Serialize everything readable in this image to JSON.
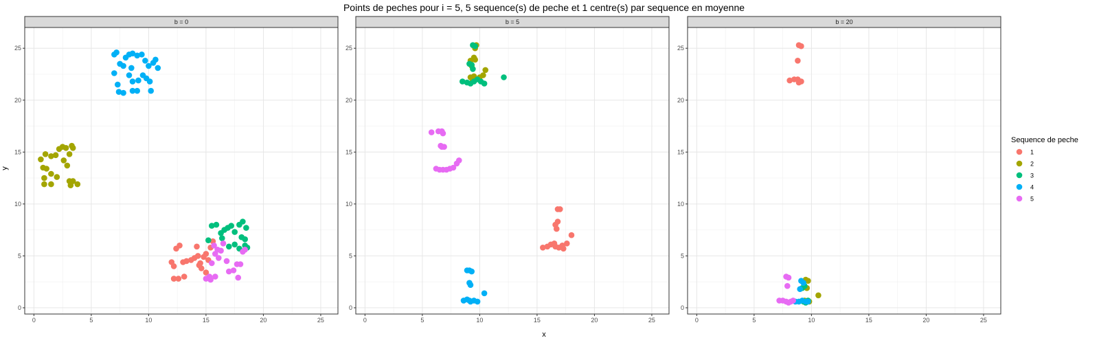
{
  "chart_data": {
    "type": "scatter",
    "title": "Points de peches pour i = 5, 5 sequence(s) de peche et 1 centre(s) par sequence en moyenne",
    "xlabel": "x",
    "ylabel": "y",
    "xlim": [
      -0.8,
      26.5
    ],
    "ylim": [
      -0.6,
      27
    ],
    "x_ticks": [
      0,
      5,
      10,
      15,
      20,
      25
    ],
    "y_ticks": [
      0,
      5,
      10,
      15,
      20,
      25
    ],
    "grid": true,
    "legend": {
      "title": "Sequence de peche",
      "placement": "right",
      "entries": [
        {
          "label": "1",
          "color": "#F8766D"
        },
        {
          "label": "2",
          "color": "#A3A500"
        },
        {
          "label": "3",
          "color": "#00BF7D"
        },
        {
          "label": "4",
          "color": "#00B0F6"
        },
        {
          "label": "5",
          "color": "#E76BF3"
        }
      ]
    },
    "panels": [
      {
        "strip": "b = 0",
        "series": [
          {
            "name": "1",
            "points": [
              [
                12.0,
                4.4
              ],
              [
                12.2,
                4.0
              ],
              [
                12.4,
                5.7
              ],
              [
                12.7,
                6.0
              ],
              [
                13.0,
                4.4
              ],
              [
                13.3,
                4.5
              ],
              [
                13.7,
                4.6
              ],
              [
                14.0,
                4.8
              ],
              [
                14.3,
                5.0
              ],
              [
                14.5,
                4.3
              ],
              [
                14.6,
                3.8
              ],
              [
                14.8,
                4.9
              ],
              [
                15.0,
                5.2
              ],
              [
                15.2,
                4.6
              ],
              [
                15.4,
                5.8
              ],
              [
                15.6,
                6.4
              ],
              [
                15.0,
                3.4
              ],
              [
                14.2,
                5.9
              ],
              [
                12.2,
                2.8
              ],
              [
                12.6,
                2.8
              ],
              [
                13.1,
                3.0
              ],
              [
                14.4,
                4.1
              ]
            ]
          },
          {
            "name": "2",
            "points": [
              [
                0.6,
                14.3
              ],
              [
                0.8,
                13.5
              ],
              [
                1.1,
                13.4
              ],
              [
                1.0,
                14.8
              ],
              [
                1.5,
                14.6
              ],
              [
                1.9,
                14.7
              ],
              [
                2.2,
                15.3
              ],
              [
                2.5,
                15.5
              ],
              [
                2.8,
                15.4
              ],
              [
                2.6,
                14.2
              ],
              [
                2.9,
                13.7
              ],
              [
                3.1,
                14.8
              ],
              [
                3.3,
                15.6
              ],
              [
                3.4,
                15.4
              ],
              [
                0.9,
                12.5
              ],
              [
                0.9,
                11.9
              ],
              [
                1.5,
                11.9
              ],
              [
                1.5,
                12.9
              ],
              [
                2.0,
                12.6
              ],
              [
                3.1,
                12.2
              ],
              [
                3.4,
                12.2
              ],
              [
                3.2,
                11.8
              ],
              [
                3.8,
                11.9
              ]
            ]
          },
          {
            "name": "3",
            "points": [
              [
                15.2,
                6.5
              ],
              [
                15.5,
                7.9
              ],
              [
                15.9,
                8.0
              ],
              [
                16.3,
                7.2
              ],
              [
                16.6,
                7.5
              ],
              [
                16.9,
                7.7
              ],
              [
                17.2,
                7.9
              ],
              [
                17.5,
                7.3
              ],
              [
                17.9,
                8.0
              ],
              [
                18.2,
                8.3
              ],
              [
                18.5,
                7.7
              ],
              [
                18.1,
                6.8
              ],
              [
                18.4,
                6.0
              ],
              [
                18.6,
                5.8
              ],
              [
                17.5,
                6.1
              ],
              [
                17.0,
                5.9
              ],
              [
                16.4,
                6.7
              ],
              [
                18.4,
                6.6
              ],
              [
                17.9,
                5.7
              ]
            ]
          },
          {
            "name": "4",
            "points": [
              [
                7.0,
                24.4
              ],
              [
                7.2,
                24.6
              ],
              [
                7.5,
                23.5
              ],
              [
                7.8,
                23.3
              ],
              [
                8.0,
                24.1
              ],
              [
                8.3,
                24.4
              ],
              [
                8.6,
                24.5
              ],
              [
                9.0,
                24.3
              ],
              [
                9.4,
                24.4
              ],
              [
                9.7,
                23.8
              ],
              [
                10.0,
                23.3
              ],
              [
                10.4,
                23.6
              ],
              [
                10.6,
                23.9
              ],
              [
                10.8,
                23.1
              ],
              [
                7.0,
                22.6
              ],
              [
                7.3,
                21.5
              ],
              [
                7.4,
                20.8
              ],
              [
                7.8,
                20.7
              ],
              [
                8.3,
                22.4
              ],
              [
                8.5,
                23.1
              ],
              [
                8.6,
                21.8
              ],
              [
                9.1,
                21.9
              ],
              [
                9.5,
                22.4
              ],
              [
                9.8,
                22.1
              ],
              [
                10.1,
                21.8
              ],
              [
                10.2,
                20.9
              ],
              [
                9.0,
                20.9
              ],
              [
                8.6,
                20.9
              ]
            ]
          },
          {
            "name": "5",
            "points": [
              [
                15.0,
                2.8
              ],
              [
                15.4,
                2.7
              ],
              [
                15.3,
                3.0
              ],
              [
                15.5,
                4.3
              ],
              [
                15.8,
                5.2
              ],
              [
                16.0,
                5.6
              ],
              [
                16.3,
                5.5
              ],
              [
                16.5,
                6.2
              ],
              [
                16.8,
                4.5
              ],
              [
                17.0,
                3.5
              ],
              [
                17.4,
                3.6
              ],
              [
                17.7,
                4.2
              ],
              [
                18.0,
                4.2
              ],
              [
                18.2,
                5.4
              ],
              [
                18.4,
                5.6
              ],
              [
                17.8,
                2.9
              ],
              [
                16.1,
                4.8
              ],
              [
                15.8,
                3.0
              ],
              [
                15.7,
                6.0
              ]
            ]
          }
        ]
      },
      {
        "strip": "b = 5",
        "series": [
          {
            "name": "1",
            "points": [
              [
                15.5,
                5.8
              ],
              [
                15.9,
                5.9
              ],
              [
                16.2,
                6.1
              ],
              [
                16.5,
                6.2
              ],
              [
                16.6,
                5.9
              ],
              [
                16.9,
                5.8
              ],
              [
                17.2,
                6.0
              ],
              [
                16.7,
                7.6
              ],
              [
                16.8,
                8.3
              ],
              [
                16.6,
                8.0
              ],
              [
                16.8,
                9.5
              ],
              [
                17.0,
                9.5
              ],
              [
                17.6,
                6.2
              ],
              [
                18.0,
                7.0
              ],
              [
                17.3,
                5.7
              ]
            ]
          },
          {
            "name": "2",
            "points": [
              [
                9.2,
                22.2
              ],
              [
                9.5,
                22.3
              ],
              [
                9.7,
                22.0
              ],
              [
                10.0,
                22.2
              ],
              [
                10.3,
                22.4
              ],
              [
                10.5,
                22.9
              ],
              [
                9.5,
                24.1
              ],
              [
                9.6,
                23.9
              ],
              [
                9.7,
                25.3
              ],
              [
                9.6,
                25.0
              ],
              [
                9.3,
                23.3
              ],
              [
                9.2,
                23.8
              ],
              [
                9.4,
                21.9
              ]
            ]
          },
          {
            "name": "3",
            "points": [
              [
                8.5,
                21.8
              ],
              [
                8.9,
                21.7
              ],
              [
                9.2,
                21.6
              ],
              [
                9.5,
                21.8
              ],
              [
                9.8,
                22.0
              ],
              [
                10.1,
                21.8
              ],
              [
                10.4,
                21.6
              ],
              [
                9.4,
                25.3
              ],
              [
                9.6,
                25.2
              ],
              [
                9.1,
                23.5
              ],
              [
                9.3,
                23.4
              ],
              [
                9.4,
                23.0
              ],
              [
                12.1,
                22.2
              ]
            ]
          },
          {
            "name": "4",
            "points": [
              [
                8.6,
                0.7
              ],
              [
                8.9,
                0.8
              ],
              [
                9.1,
                0.7
              ],
              [
                9.2,
                0.6
              ],
              [
                9.5,
                0.7
              ],
              [
                9.8,
                0.6
              ],
              [
                10.4,
                1.4
              ],
              [
                9.1,
                3.6
              ],
              [
                9.3,
                3.5
              ],
              [
                8.9,
                3.6
              ],
              [
                9.1,
                2.4
              ],
              [
                9.2,
                2.2
              ]
            ]
          },
          {
            "name": "5",
            "points": [
              [
                5.8,
                16.9
              ],
              [
                6.4,
                17.0
              ],
              [
                6.7,
                17.0
              ],
              [
                6.8,
                16.8
              ],
              [
                6.6,
                15.6
              ],
              [
                6.7,
                15.5
              ],
              [
                6.2,
                13.4
              ],
              [
                6.5,
                13.3
              ],
              [
                6.8,
                13.3
              ],
              [
                7.1,
                13.3
              ],
              [
                7.4,
                13.4
              ],
              [
                7.7,
                13.5
              ],
              [
                8.0,
                13.9
              ],
              [
                8.2,
                14.2
              ],
              [
                6.9,
                15.5
              ]
            ]
          }
        ]
      },
      {
        "strip": "b = 20",
        "series": [
          {
            "name": "1",
            "points": [
              [
                8.9,
                25.3
              ],
              [
                9.1,
                25.2
              ],
              [
                8.8,
                23.8
              ],
              [
                8.1,
                21.9
              ],
              [
                8.5,
                22.0
              ],
              [
                8.8,
                22.0
              ],
              [
                9.1,
                21.8
              ],
              [
                8.9,
                21.7
              ]
            ]
          },
          {
            "name": "2",
            "points": [
              [
                9.5,
                2.7
              ],
              [
                9.7,
                2.6
              ],
              [
                9.6,
                1.9
              ],
              [
                9.8,
                0.6
              ],
              [
                10.6,
                1.2
              ],
              [
                9.4,
                0.7
              ]
            ]
          },
          {
            "name": "3",
            "points": [
              [
                9.2,
                1.9
              ],
              [
                9.4,
                2.1
              ],
              [
                9.5,
                0.5
              ],
              [
                9.7,
                0.7
              ],
              [
                9.3,
                0.6
              ]
            ]
          },
          {
            "name": "4",
            "points": [
              [
                9.1,
                2.6
              ],
              [
                9.3,
                2.4
              ],
              [
                9.0,
                1.8
              ],
              [
                8.9,
                0.6
              ],
              [
                9.2,
                0.7
              ],
              [
                9.5,
                0.6
              ],
              [
                9.7,
                0.6
              ],
              [
                8.6,
                0.6
              ]
            ]
          },
          {
            "name": "5",
            "points": [
              [
                7.2,
                0.7
              ],
              [
                7.5,
                0.7
              ],
              [
                7.8,
                0.6
              ],
              [
                8.0,
                0.5
              ],
              [
                8.2,
                0.6
              ],
              [
                7.9,
                2.1
              ],
              [
                7.8,
                3.0
              ],
              [
                8.0,
                2.9
              ],
              [
                8.4,
                0.7
              ]
            ]
          }
        ]
      }
    ]
  }
}
